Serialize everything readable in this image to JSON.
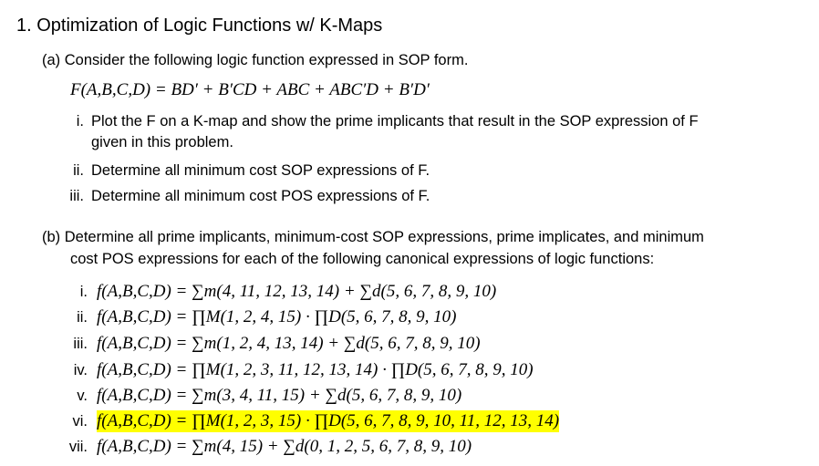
{
  "title": "1. Optimization of Logic Functions w/ K-Maps",
  "part_a": {
    "label": "(a) Consider the following logic function expressed in SOP form.",
    "equation": "F(A,B,C,D) = BD′ + B′CD + ABC + ABC′D + B′D′",
    "items": [
      {
        "num": "i.",
        "lines": [
          "Plot the F on a K-map and show the prime implicants that result in the SOP expression of F",
          "given in this problem."
        ]
      },
      {
        "num": "ii.",
        "lines": [
          "Determine all minimum cost SOP expressions of F."
        ]
      },
      {
        "num": "iii.",
        "lines": [
          "Determine all minimum cost POS expressions of F."
        ]
      }
    ]
  },
  "part_b": {
    "lines": [
      "(b) Determine all prime implicants, minimum-cost SOP expressions, prime implicates, and minimum",
      "cost POS expressions for each of the following canonical expressions of logic functions:"
    ],
    "items": [
      {
        "num": "i.",
        "expr": "f(A,B,C,D) = ∑m(4, 11, 12, 13, 14) + ∑d(5, 6, 7, 8, 9, 10)"
      },
      {
        "num": "ii.",
        "expr": "f(A,B,C,D) = ∏M(1, 2, 4, 15) · ∏D(5, 6, 7, 8, 9, 10)"
      },
      {
        "num": "iii.",
        "expr": "f(A,B,C,D) = ∑m(1, 2, 4, 13, 14) + ∑d(5, 6, 7, 8, 9, 10)"
      },
      {
        "num": "iv.",
        "expr": "f(A,B,C,D) = ∏M(1, 2, 3, 11, 12, 13, 14) · ∏D(5, 6, 7, 8, 9, 10)"
      },
      {
        "num": "v.",
        "expr": "f(A,B,C,D) = ∑m(3, 4, 11, 15)  + ∑d(5, 6, 7, 8, 9, 10)"
      },
      {
        "num": "vi.",
        "expr": "f(A,B,C,D) = ∏M(1, 2, 3, 15) · ∏D(5, 6, 7, 8, 9, 10, 11, 12, 13, 14)",
        "highlighted": true
      },
      {
        "num": "vii.",
        "expr": "f(A,B,C,D) = ∑m(4, 15) + ∑d(0, 1, 2, 5, 6, 7, 8, 9, 10)"
      }
    ],
    "highlight_color": "#ffff00"
  }
}
